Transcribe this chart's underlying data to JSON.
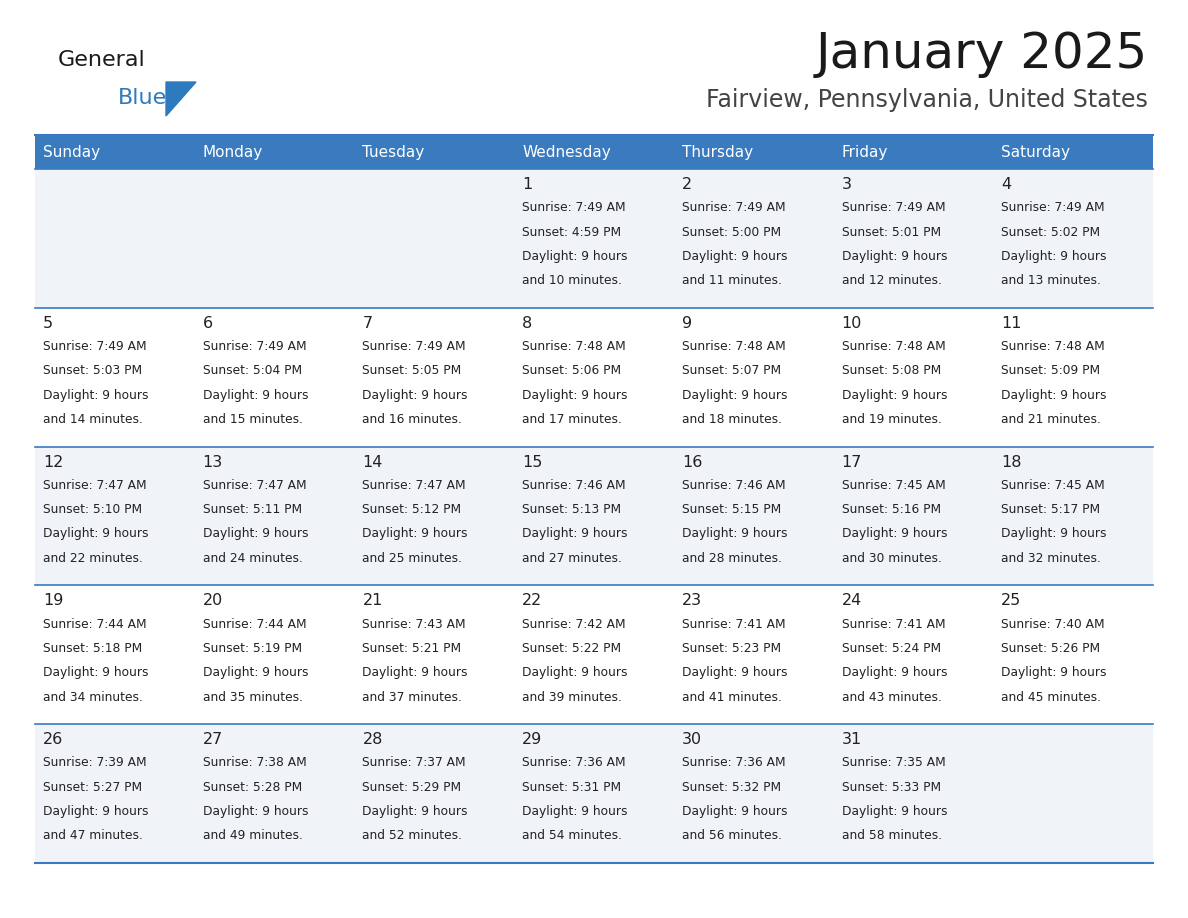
{
  "title": "January 2025",
  "subtitle": "Fairview, Pennsylvania, United States",
  "header_color": "#3a7abf",
  "header_text_color": "#ffffff",
  "cell_bg_even": "#f0f4f8",
  "cell_bg_odd": "#ffffff",
  "border_color": "#3a7abf",
  "day_number_color": "#222222",
  "text_color": "#222222",
  "logo_black": "#1a1a1a",
  "logo_blue": "#2e7abf",
  "days_of_week": [
    "Sunday",
    "Monday",
    "Tuesday",
    "Wednesday",
    "Thursday",
    "Friday",
    "Saturday"
  ],
  "calendar_data": [
    [
      {
        "day": null,
        "sunrise": null,
        "sunset": null,
        "daylight_hours": null,
        "daylight_minutes": null
      },
      {
        "day": null,
        "sunrise": null,
        "sunset": null,
        "daylight_hours": null,
        "daylight_minutes": null
      },
      {
        "day": null,
        "sunrise": null,
        "sunset": null,
        "daylight_hours": null,
        "daylight_minutes": null
      },
      {
        "day": 1,
        "sunrise": "7:49 AM",
        "sunset": "4:59 PM",
        "daylight_hours": 9,
        "daylight_minutes": 10
      },
      {
        "day": 2,
        "sunrise": "7:49 AM",
        "sunset": "5:00 PM",
        "daylight_hours": 9,
        "daylight_minutes": 11
      },
      {
        "day": 3,
        "sunrise": "7:49 AM",
        "sunset": "5:01 PM",
        "daylight_hours": 9,
        "daylight_minutes": 12
      },
      {
        "day": 4,
        "sunrise": "7:49 AM",
        "sunset": "5:02 PM",
        "daylight_hours": 9,
        "daylight_minutes": 13
      }
    ],
    [
      {
        "day": 5,
        "sunrise": "7:49 AM",
        "sunset": "5:03 PM",
        "daylight_hours": 9,
        "daylight_minutes": 14
      },
      {
        "day": 6,
        "sunrise": "7:49 AM",
        "sunset": "5:04 PM",
        "daylight_hours": 9,
        "daylight_minutes": 15
      },
      {
        "day": 7,
        "sunrise": "7:49 AM",
        "sunset": "5:05 PM",
        "daylight_hours": 9,
        "daylight_minutes": 16
      },
      {
        "day": 8,
        "sunrise": "7:48 AM",
        "sunset": "5:06 PM",
        "daylight_hours": 9,
        "daylight_minutes": 17
      },
      {
        "day": 9,
        "sunrise": "7:48 AM",
        "sunset": "5:07 PM",
        "daylight_hours": 9,
        "daylight_minutes": 18
      },
      {
        "day": 10,
        "sunrise": "7:48 AM",
        "sunset": "5:08 PM",
        "daylight_hours": 9,
        "daylight_minutes": 19
      },
      {
        "day": 11,
        "sunrise": "7:48 AM",
        "sunset": "5:09 PM",
        "daylight_hours": 9,
        "daylight_minutes": 21
      }
    ],
    [
      {
        "day": 12,
        "sunrise": "7:47 AM",
        "sunset": "5:10 PM",
        "daylight_hours": 9,
        "daylight_minutes": 22
      },
      {
        "day": 13,
        "sunrise": "7:47 AM",
        "sunset": "5:11 PM",
        "daylight_hours": 9,
        "daylight_minutes": 24
      },
      {
        "day": 14,
        "sunrise": "7:47 AM",
        "sunset": "5:12 PM",
        "daylight_hours": 9,
        "daylight_minutes": 25
      },
      {
        "day": 15,
        "sunrise": "7:46 AM",
        "sunset": "5:13 PM",
        "daylight_hours": 9,
        "daylight_minutes": 27
      },
      {
        "day": 16,
        "sunrise": "7:46 AM",
        "sunset": "5:15 PM",
        "daylight_hours": 9,
        "daylight_minutes": 28
      },
      {
        "day": 17,
        "sunrise": "7:45 AM",
        "sunset": "5:16 PM",
        "daylight_hours": 9,
        "daylight_minutes": 30
      },
      {
        "day": 18,
        "sunrise": "7:45 AM",
        "sunset": "5:17 PM",
        "daylight_hours": 9,
        "daylight_minutes": 32
      }
    ],
    [
      {
        "day": 19,
        "sunrise": "7:44 AM",
        "sunset": "5:18 PM",
        "daylight_hours": 9,
        "daylight_minutes": 34
      },
      {
        "day": 20,
        "sunrise": "7:44 AM",
        "sunset": "5:19 PM",
        "daylight_hours": 9,
        "daylight_minutes": 35
      },
      {
        "day": 21,
        "sunrise": "7:43 AM",
        "sunset": "5:21 PM",
        "daylight_hours": 9,
        "daylight_minutes": 37
      },
      {
        "day": 22,
        "sunrise": "7:42 AM",
        "sunset": "5:22 PM",
        "daylight_hours": 9,
        "daylight_minutes": 39
      },
      {
        "day": 23,
        "sunrise": "7:41 AM",
        "sunset": "5:23 PM",
        "daylight_hours": 9,
        "daylight_minutes": 41
      },
      {
        "day": 24,
        "sunrise": "7:41 AM",
        "sunset": "5:24 PM",
        "daylight_hours": 9,
        "daylight_minutes": 43
      },
      {
        "day": 25,
        "sunrise": "7:40 AM",
        "sunset": "5:26 PM",
        "daylight_hours": 9,
        "daylight_minutes": 45
      }
    ],
    [
      {
        "day": 26,
        "sunrise": "7:39 AM",
        "sunset": "5:27 PM",
        "daylight_hours": 9,
        "daylight_minutes": 47
      },
      {
        "day": 27,
        "sunrise": "7:38 AM",
        "sunset": "5:28 PM",
        "daylight_hours": 9,
        "daylight_minutes": 49
      },
      {
        "day": 28,
        "sunrise": "7:37 AM",
        "sunset": "5:29 PM",
        "daylight_hours": 9,
        "daylight_minutes": 52
      },
      {
        "day": 29,
        "sunrise": "7:36 AM",
        "sunset": "5:31 PM",
        "daylight_hours": 9,
        "daylight_minutes": 54
      },
      {
        "day": 30,
        "sunrise": "7:36 AM",
        "sunset": "5:32 PM",
        "daylight_hours": 9,
        "daylight_minutes": 56
      },
      {
        "day": 31,
        "sunrise": "7:35 AM",
        "sunset": "5:33 PM",
        "daylight_hours": 9,
        "daylight_minutes": 58
      },
      {
        "day": null,
        "sunrise": null,
        "sunset": null,
        "daylight_hours": null,
        "daylight_minutes": null
      }
    ]
  ],
  "fig_width": 11.88,
  "fig_height": 9.18,
  "dpi": 100
}
